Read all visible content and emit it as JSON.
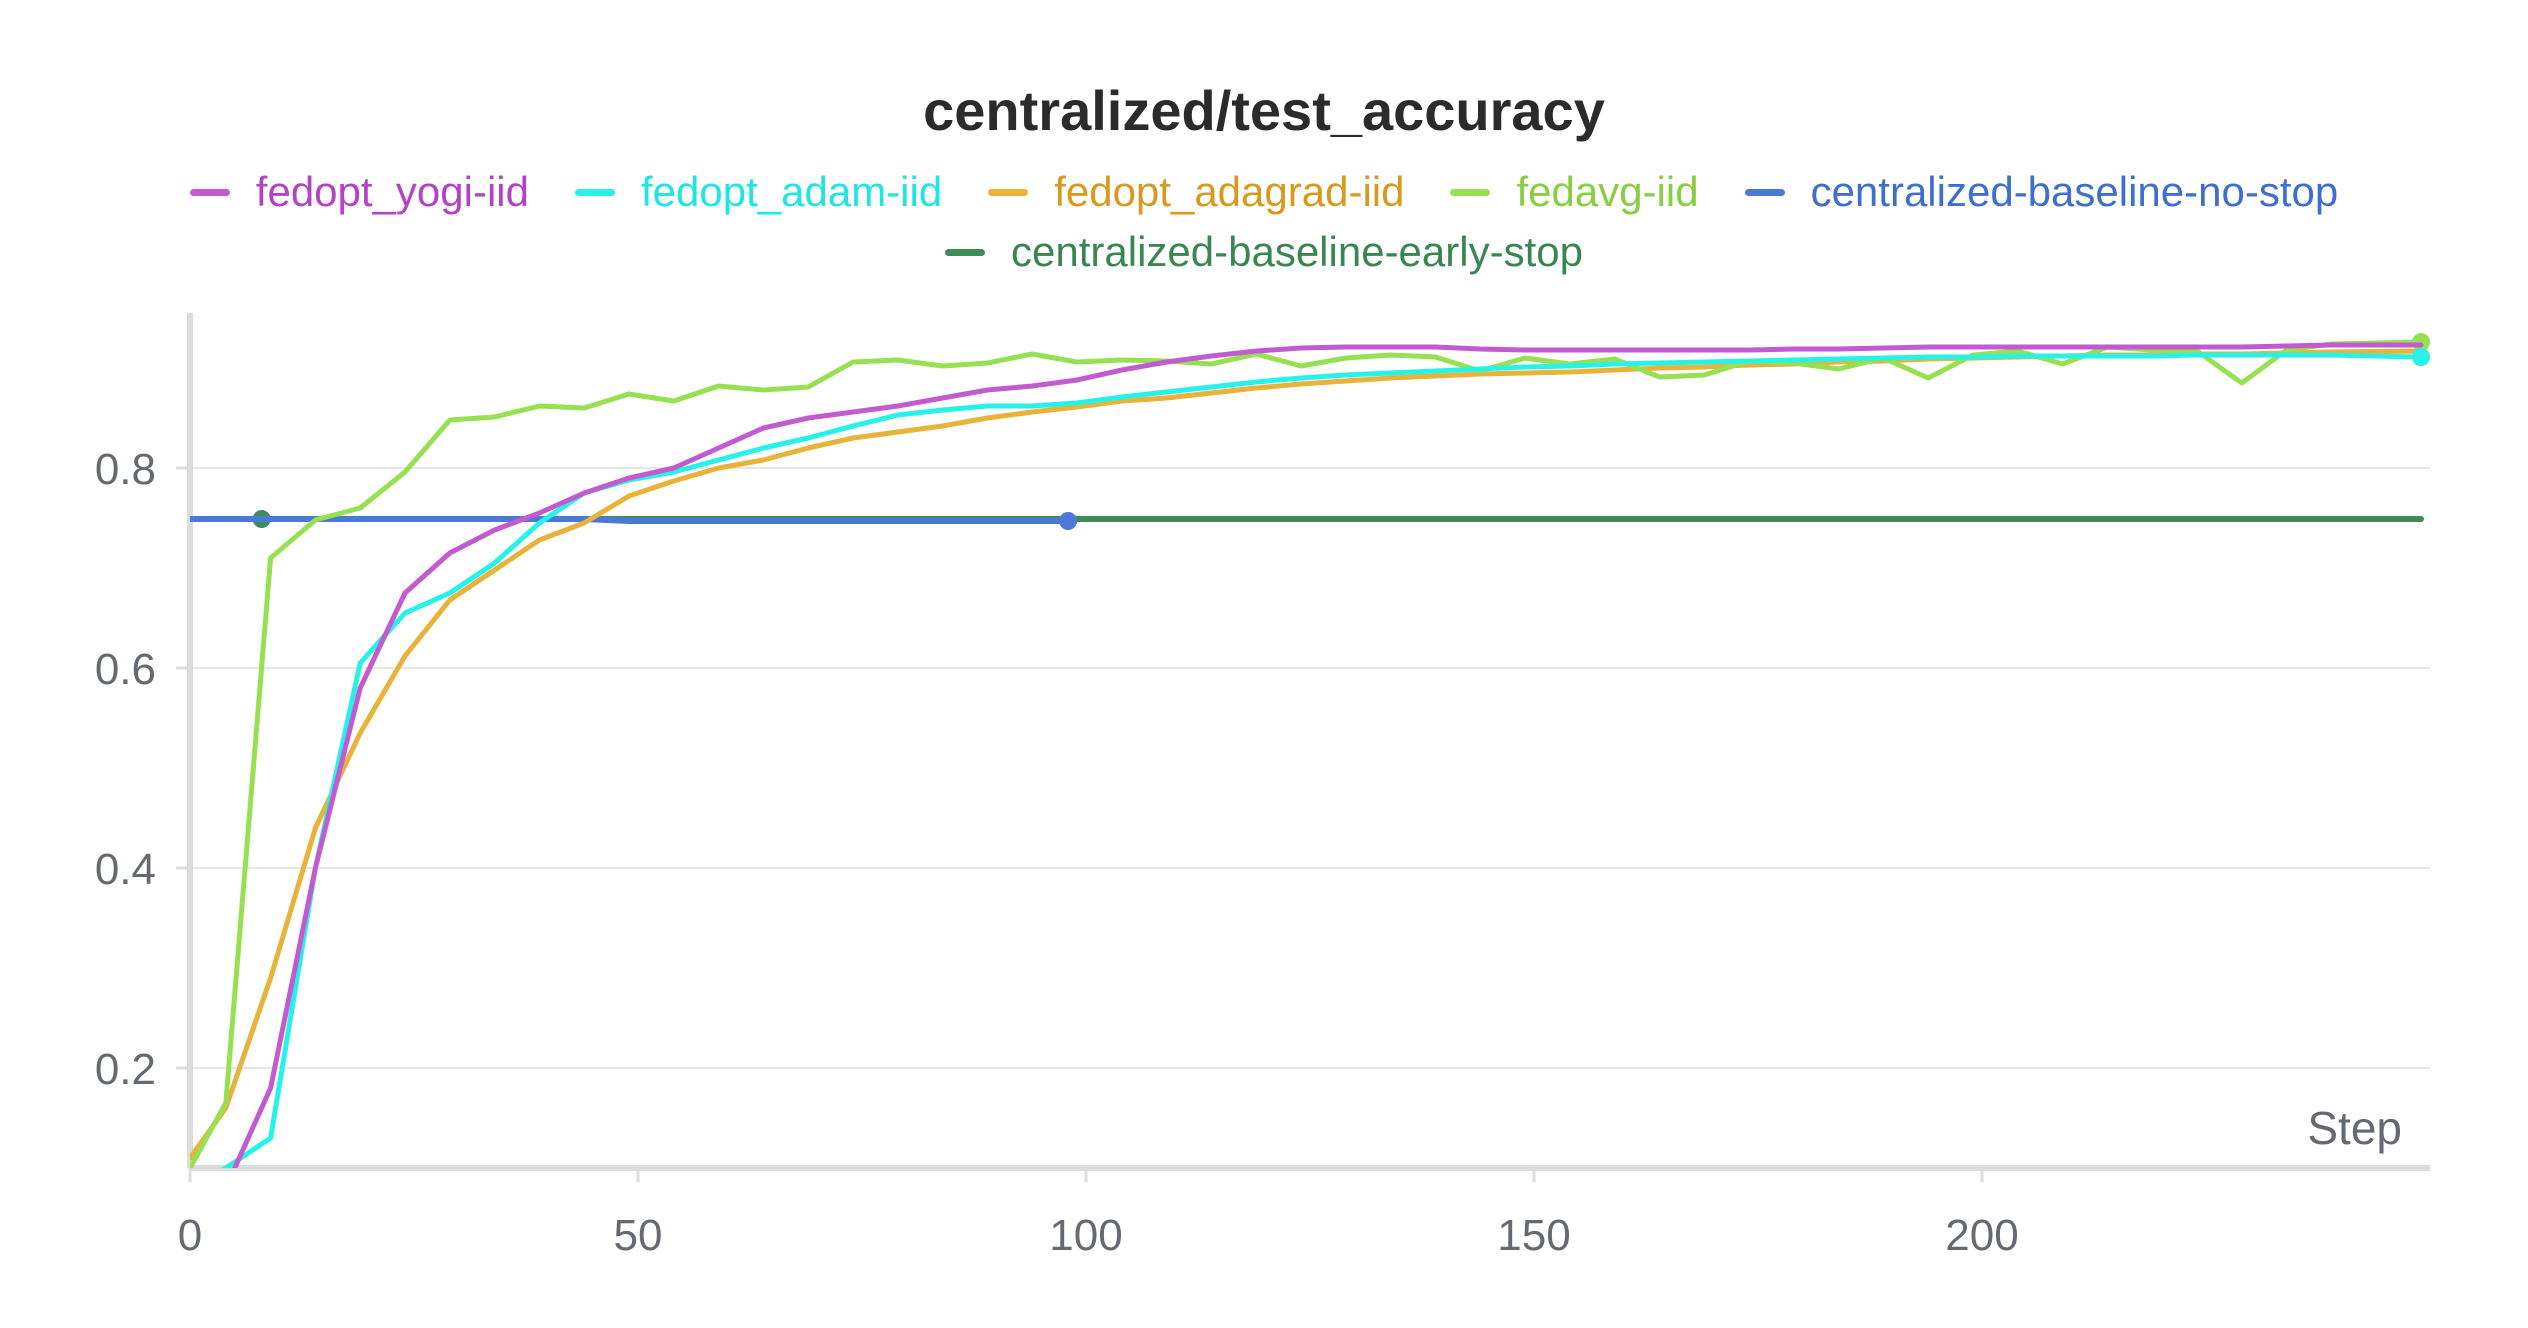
{
  "chart_data": {
    "type": "line",
    "title": "centralized/test_accuracy",
    "xlabel": "Step",
    "ylabel": "",
    "xlim": [
      0,
      250
    ],
    "ylim": [
      0.1,
      0.95
    ],
    "x_ticks": [
      0,
      50,
      100,
      150,
      200
    ],
    "x_tick_labels": [
      "0",
      "50",
      "100",
      "150",
      "200"
    ],
    "y_ticks": [
      0.2,
      0.4,
      0.6,
      0.8
    ],
    "y_tick_labels": [
      "0.2",
      "0.4",
      "0.6",
      "0.8"
    ],
    "grid": true,
    "legend_position": "top-center",
    "series": [
      {
        "name": "fedopt_yogi-iid",
        "color": "#c35bd0",
        "x": [
          0,
          4,
          9,
          14,
          19,
          24,
          29,
          34,
          39,
          44,
          49,
          54,
          59,
          64,
          69,
          74,
          79,
          84,
          89,
          94,
          99,
          104,
          109,
          114,
          119,
          124,
          129,
          134,
          139,
          144,
          149,
          154,
          159,
          164,
          169,
          174,
          179,
          184,
          189,
          194,
          199,
          204,
          209,
          214,
          219,
          224,
          229,
          234,
          239,
          249
        ],
        "values": [
          0.08,
          0.08,
          0.18,
          0.4,
          0.58,
          0.675,
          0.715,
          0.738,
          0.755,
          0.775,
          0.79,
          0.8,
          0.82,
          0.84,
          0.85,
          0.856,
          0.862,
          0.87,
          0.878,
          0.882,
          0.888,
          0.898,
          0.906,
          0.912,
          0.917,
          0.92,
          0.921,
          0.921,
          0.921,
          0.919,
          0.918,
          0.918,
          0.918,
          0.918,
          0.918,
          0.918,
          0.919,
          0.919,
          0.92,
          0.921,
          0.921,
          0.921,
          0.921,
          0.921,
          0.921,
          0.921,
          0.921,
          0.922,
          0.923,
          0.923
        ],
        "end_marker": false
      },
      {
        "name": "fedopt_adam-iid",
        "color": "#26f2e8",
        "x": [
          0,
          4,
          9,
          14,
          19,
          24,
          29,
          34,
          39,
          44,
          49,
          54,
          59,
          64,
          69,
          74,
          79,
          84,
          89,
          94,
          99,
          104,
          109,
          114,
          119,
          124,
          129,
          134,
          139,
          144,
          149,
          154,
          159,
          164,
          169,
          174,
          179,
          184,
          189,
          194,
          199,
          204,
          209,
          214,
          219,
          224,
          229,
          234,
          239,
          249
        ],
        "values": [
          0.08,
          0.1,
          0.13,
          0.4,
          0.605,
          0.655,
          0.675,
          0.705,
          0.745,
          0.775,
          0.788,
          0.796,
          0.808,
          0.82,
          0.83,
          0.842,
          0.853,
          0.858,
          0.862,
          0.862,
          0.865,
          0.871,
          0.876,
          0.881,
          0.886,
          0.89,
          0.893,
          0.895,
          0.897,
          0.899,
          0.901,
          0.902,
          0.904,
          0.905,
          0.906,
          0.907,
          0.908,
          0.909,
          0.91,
          0.911,
          0.911,
          0.912,
          0.912,
          0.912,
          0.912,
          0.913,
          0.913,
          0.913,
          0.913,
          0.911
        ],
        "end_marker": true
      },
      {
        "name": "fedopt_adagrad-iid",
        "color": "#e9b33a",
        "x": [
          0,
          4,
          9,
          14,
          19,
          24,
          29,
          34,
          39,
          44,
          49,
          54,
          59,
          64,
          69,
          74,
          79,
          84,
          89,
          94,
          99,
          104,
          109,
          114,
          119,
          124,
          129,
          134,
          139,
          144,
          149,
          154,
          159,
          164,
          169,
          174,
          179,
          184,
          189,
          194,
          199,
          204,
          209,
          214,
          219,
          224,
          229,
          234,
          239,
          249
        ],
        "values": [
          0.11,
          0.16,
          0.29,
          0.44,
          0.535,
          0.612,
          0.668,
          0.698,
          0.728,
          0.745,
          0.772,
          0.787,
          0.8,
          0.808,
          0.82,
          0.83,
          0.836,
          0.842,
          0.85,
          0.856,
          0.861,
          0.867,
          0.87,
          0.875,
          0.88,
          0.884,
          0.887,
          0.89,
          0.892,
          0.894,
          0.895,
          0.896,
          0.898,
          0.9,
          0.901,
          0.903,
          0.904,
          0.906,
          0.907,
          0.909,
          0.91,
          0.911,
          0.912,
          0.913,
          0.913,
          0.914,
          0.914,
          0.915,
          0.916,
          0.917
        ],
        "end_marker": false
      },
      {
        "name": "fedavg-iid",
        "color": "#97e052",
        "x": [
          0,
          4,
          9,
          14,
          19,
          24,
          29,
          34,
          39,
          44,
          49,
          54,
          59,
          64,
          69,
          74,
          79,
          84,
          89,
          94,
          99,
          104,
          109,
          114,
          119,
          124,
          129,
          134,
          139,
          144,
          149,
          154,
          159,
          164,
          169,
          174,
          179,
          184,
          189,
          194,
          199,
          204,
          209,
          214,
          219,
          224,
          229,
          234,
          239,
          249
        ],
        "values": [
          0.1,
          0.165,
          0.71,
          0.748,
          0.76,
          0.796,
          0.848,
          0.851,
          0.862,
          0.86,
          0.874,
          0.867,
          0.882,
          0.878,
          0.881,
          0.906,
          0.908,
          0.902,
          0.905,
          0.914,
          0.906,
          0.908,
          0.907,
          0.904,
          0.914,
          0.902,
          0.91,
          0.913,
          0.911,
          0.897,
          0.91,
          0.904,
          0.909,
          0.891,
          0.893,
          0.907,
          0.905,
          0.899,
          0.91,
          0.89,
          0.913,
          0.917,
          0.904,
          0.921,
          0.918,
          0.917,
          0.885,
          0.918,
          0.924,
          0.926
        ],
        "end_marker": true
      },
      {
        "name": "centralized-baseline-no-stop",
        "color": "#4a79d6",
        "x": [
          0,
          44,
          49,
          98
        ],
        "values": [
          0.749,
          0.749,
          0.747,
          0.747
        ],
        "end_marker": true
      },
      {
        "name": "centralized-baseline-early-stop",
        "color": "#3f8c57",
        "x": [
          0,
          8,
          249
        ],
        "values": [
          0.749,
          0.749,
          0.749
        ],
        "start_marker_x": 8
      }
    ]
  }
}
